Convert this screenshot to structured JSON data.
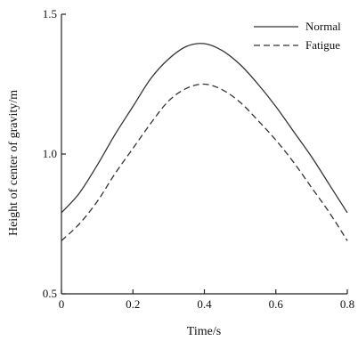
{
  "chart_data": {
    "type": "line",
    "title": "",
    "xlabel": "Time/s",
    "ylabel": "Height of center of gravity/m",
    "xlim": [
      0,
      0.8
    ],
    "ylim": [
      0.5,
      1.5
    ],
    "x_ticks": [
      "0",
      "0.2",
      "0.4",
      "0.6",
      "0.8"
    ],
    "y_ticks": [
      "0.5",
      "1.0",
      "1.5"
    ],
    "grid": false,
    "legend": "top-right",
    "x": [
      0,
      0.05,
      0.1,
      0.15,
      0.2,
      0.25,
      0.3,
      0.35,
      0.4,
      0.45,
      0.5,
      0.55,
      0.6,
      0.65,
      0.7,
      0.75,
      0.8
    ],
    "series": [
      {
        "name": "Normal",
        "style": "solid",
        "color": "#333333",
        "values": [
          0.79,
          0.86,
          0.96,
          1.07,
          1.17,
          1.27,
          1.34,
          1.385,
          1.395,
          1.37,
          1.32,
          1.25,
          1.17,
          1.08,
          0.99,
          0.89,
          0.79
        ]
      },
      {
        "name": "Fatigue",
        "style": "dashed",
        "color": "#333333",
        "values": [
          0.69,
          0.75,
          0.83,
          0.93,
          1.02,
          1.11,
          1.19,
          1.235,
          1.25,
          1.23,
          1.185,
          1.12,
          1.05,
          0.97,
          0.88,
          0.79,
          0.69
        ]
      }
    ]
  }
}
